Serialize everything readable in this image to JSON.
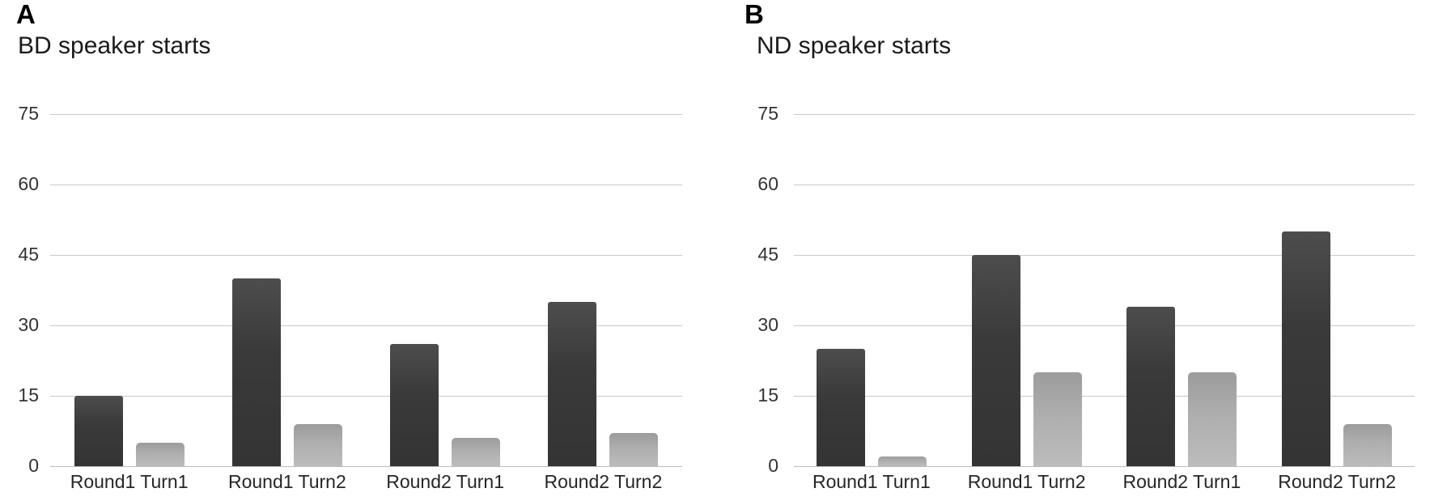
{
  "figure": {
    "background": "#ffffff",
    "panels": [
      {
        "letter": "A",
        "title": "BD speaker starts"
      },
      {
        "letter": "B",
        "title": "ND speaker starts"
      }
    ]
  },
  "chart_data": [
    {
      "type": "bar",
      "panel": "A",
      "title": "BD speaker starts",
      "categories": [
        "Round1 Turn1",
        "Round1 Turn2",
        "Round2 Turn1",
        "Round2 Turn2"
      ],
      "series": [
        {
          "name": "dark-gray-series",
          "color": "#3a3a3a",
          "values": [
            15,
            40,
            26,
            35
          ]
        },
        {
          "name": "light-gray-series",
          "color": "#b0b0b0",
          "values": [
            5,
            9,
            6,
            7
          ]
        }
      ],
      "ylim": [
        0,
        75
      ],
      "yticks": [
        0,
        15,
        30,
        45,
        60,
        75
      ],
      "grid": true,
      "legend": "none",
      "gridline_color": "#c9c9c9"
    },
    {
      "type": "bar",
      "panel": "B",
      "title": "ND speaker starts",
      "categories": [
        "Round1 Turn1",
        "Round1 Turn2",
        "Round2 Turn1",
        "Round2 Turn2"
      ],
      "series": [
        {
          "name": "dark-gray-series",
          "color": "#3a3a3a",
          "values": [
            25,
            45,
            34,
            50
          ]
        },
        {
          "name": "light-gray-series",
          "color": "#b0b0b0",
          "values": [
            2,
            20,
            20,
            9
          ]
        }
      ],
      "ylim": [
        0,
        75
      ],
      "yticks": [
        0,
        15,
        30,
        45,
        60,
        75
      ],
      "grid": true,
      "legend": "none",
      "gridline_color": "#c9c9c9"
    }
  ]
}
